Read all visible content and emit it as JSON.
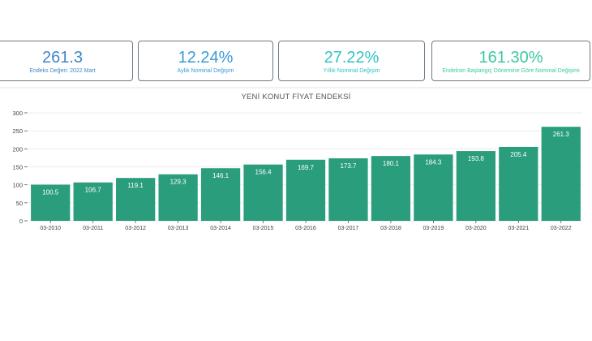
{
  "kpis": [
    {
      "value": "261.3",
      "label": "Endeks Değeri: 2022 Mart",
      "color": "#3f86c8"
    },
    {
      "value": "12.24%",
      "label": "Aylık Nominal Değişim",
      "color": "#3a9bd3"
    },
    {
      "value": "27.22%",
      "label": "Yıllık Nominal Değişim",
      "color": "#32c3c3"
    },
    {
      "value": "161.30%",
      "label": "Endeksin Başlangıç Dönemine Göre Nominal Değişimi",
      "color": "#3bc8a2"
    }
  ],
  "chart_data": {
    "type": "bar",
    "title": "YENİ KONUT FİYAT ENDEKSİ",
    "categories": [
      "03-2010",
      "03-2011",
      "03-2012",
      "03-2013",
      "03-2014",
      "03-2015",
      "03-2016",
      "03-2017",
      "03-2018",
      "03-2019",
      "03-2020",
      "03-2021",
      "03-2022"
    ],
    "values": [
      100.5,
      106.7,
      119.1,
      129.3,
      146.1,
      156.4,
      169.7,
      173.7,
      180.1,
      184.3,
      193.8,
      205.4,
      261.3
    ],
    "data_labels": [
      "100.5",
      "106.7",
      "119.1",
      "129.3",
      "146.1",
      "156.4",
      "169.7",
      "173.7",
      "180.1",
      "184.3",
      "193.8",
      "205.4",
      "261.3"
    ],
    "yticks": [
      "0",
      "50",
      "100",
      "150",
      "200",
      "250",
      "300"
    ],
    "ytick_values": [
      0,
      50,
      100,
      150,
      200,
      250,
      300
    ],
    "ylim": [
      0,
      300
    ],
    "bar_color": "#2a9d7c",
    "grid": true
  }
}
